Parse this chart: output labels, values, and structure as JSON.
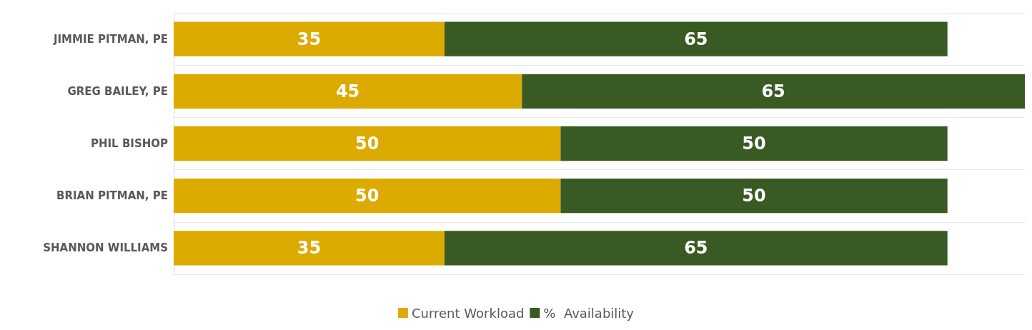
{
  "chart_data": {
    "type": "bar",
    "orientation": "horizontal",
    "stacked": true,
    "data_labels": true,
    "grid": "y",
    "legend": "bottom",
    "categories": [
      "JIMMIE PITMAN, PE",
      "GREG BAILEY, PE",
      "PHIL BISHOP",
      "BRIAN PITMAN, PE",
      "SHANNON WILLIAMS"
    ],
    "series": [
      {
        "name": "Current Workload",
        "color": "#ddaa00",
        "values": [
          35,
          45,
          50,
          50,
          35
        ]
      },
      {
        "name": "%  Availability",
        "color": "#3a5a24",
        "values": [
          65,
          65,
          50,
          50,
          65
        ]
      }
    ]
  }
}
